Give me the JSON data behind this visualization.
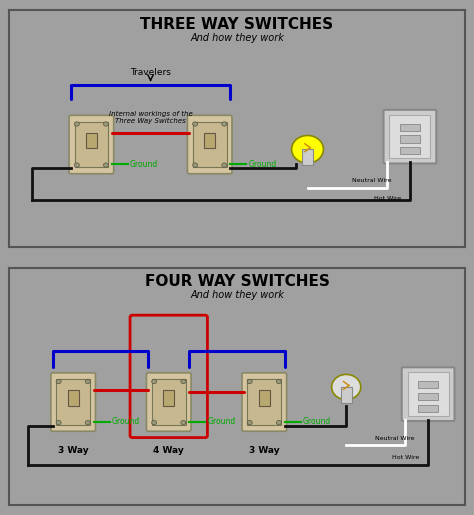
{
  "bg_color": "#a0a0a0",
  "panel1_bg": "#a0a0a0",
  "panel2_bg": "#a0a0a0",
  "border_color": "#555555",
  "title1": "THREE WAY SWITCHES",
  "subtitle1": "And how they work",
  "title2": "FOUR WAY SWITCHES",
  "subtitle2": "And how they work",
  "blue_color": "#0000cc",
  "red_color": "#cc0000",
  "black_color": "#111111",
  "green_color": "#00aa00",
  "white_color": "#ffffff",
  "yellow_color": "#ffff00",
  "switch_color": "#d4c4a0",
  "panel_color": "#cccccc",
  "neutral_wire_label": "Neutral Wire",
  "hot_wire_label": "Hot Wire",
  "travelers_label": "Travelers",
  "internal_label": "Internal workings of the\nThree Way Switches",
  "ground_label": "Ground",
  "label_3way_left": "3 Way",
  "label_4way": "4 Way",
  "label_3way_right": "3 Way"
}
